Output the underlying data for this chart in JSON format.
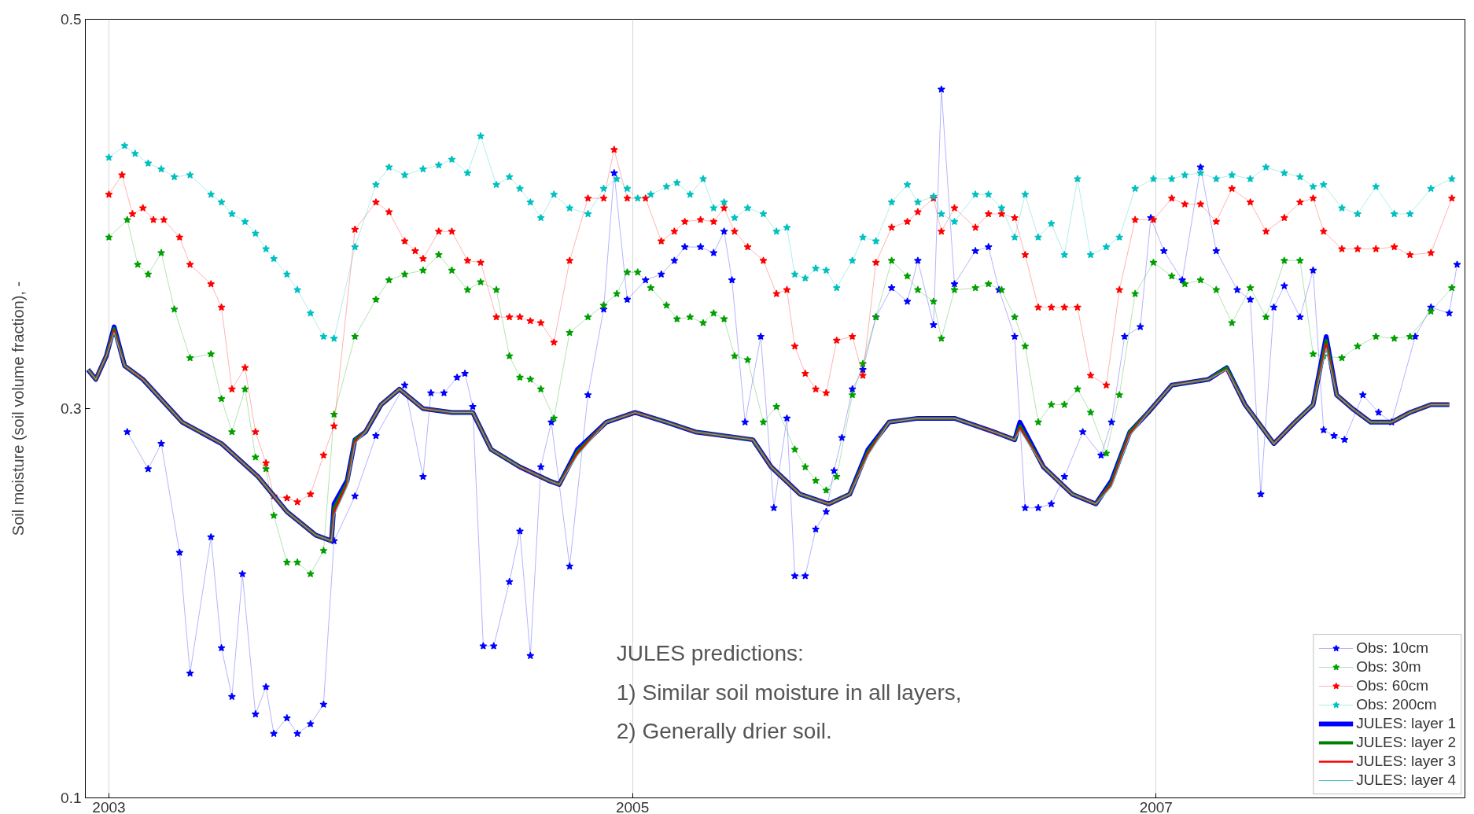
{
  "chart_data": {
    "type": "line",
    "ylabel": "Soil moisture (soil volume fraction), -",
    "xlim": [
      2002.91,
      2008.18
    ],
    "ylim": [
      0.1,
      0.5
    ],
    "xticks": [
      2003,
      2005,
      2007
    ],
    "yticks": [
      0.1,
      0.3,
      0.5
    ],
    "grid": "x",
    "legend": "bottom right",
    "annotations": [
      "JULES predictions:\n1)  Similar soil moisture in all layers,\n2)  Generally drier soil."
    ],
    "series": [
      {
        "name": "Obs: 10cm",
        "color": "#0000ff",
        "marker": "star",
        "line_style": "solid",
        "x": [
          2003.07,
          2003.15,
          2003.2,
          2003.27,
          2003.31,
          2003.39,
          2003.43,
          2003.47,
          2003.51,
          2003.56,
          2003.6,
          2003.63,
          2003.68,
          2003.72,
          2003.77,
          2003.82,
          2003.86,
          2003.94,
          2004.02,
          2004.13,
          2004.2,
          2004.23,
          2004.28,
          2004.33,
          2004.36,
          2004.39,
          2004.43,
          2004.47,
          2004.53,
          2004.57,
          2004.61,
          2004.65,
          2004.69,
          2004.76,
          2004.83,
          2004.89,
          2004.93,
          2004.98,
          2005.05,
          2005.11,
          2005.16,
          2005.2,
          2005.26,
          2005.31,
          2005.35,
          2005.38,
          2005.43,
          2005.49,
          2005.54,
          2005.59,
          2005.62,
          2005.66,
          2005.7,
          2005.74,
          2005.77,
          2005.8,
          2005.84,
          2005.88,
          2005.93,
          2005.99,
          2006.05,
          2006.09,
          2006.15,
          2006.18,
          2006.23,
          2006.31,
          2006.36,
          2006.4,
          2006.46,
          2006.5,
          2006.55,
          2006.6,
          2006.65,
          2006.72,
          2006.79,
          2006.83,
          2006.88,
          2006.94,
          2006.98,
          2007.03,
          2007.1,
          2007.17,
          2007.23,
          2007.31,
          2007.36,
          2007.4,
          2007.45,
          2007.49,
          2007.55,
          2007.6,
          2007.64,
          2007.68,
          2007.72,
          2007.79,
          2007.85,
          2007.9,
          2007.99,
          2008.05,
          2008.12,
          2008.15
        ],
        "values": [
          0.288,
          0.269,
          0.282,
          0.226,
          0.164,
          0.234,
          0.177,
          0.152,
          0.215,
          0.143,
          0.157,
          0.133,
          0.141,
          0.133,
          0.138,
          0.148,
          0.232,
          0.255,
          0.286,
          0.312,
          0.265,
          0.308,
          0.308,
          0.316,
          0.318,
          0.301,
          0.178,
          0.178,
          0.211,
          0.237,
          0.173,
          0.27,
          0.293,
          0.219,
          0.307,
          0.351,
          0.421,
          0.356,
          0.366,
          0.369,
          0.376,
          0.383,
          0.383,
          0.38,
          0.391,
          0.366,
          0.293,
          0.337,
          0.249,
          0.295,
          0.214,
          0.214,
          0.238,
          0.247,
          0.268,
          0.285,
          0.31,
          0.32,
          0.347,
          0.362,
          0.355,
          0.376,
          0.343,
          0.464,
          0.364,
          0.381,
          0.383,
          0.361,
          0.337,
          0.249,
          0.249,
          0.251,
          0.265,
          0.288,
          0.276,
          0.293,
          0.337,
          0.342,
          0.398,
          0.381,
          0.366,
          0.424,
          0.381,
          0.361,
          0.356,
          0.256,
          0.352,
          0.363,
          0.347,
          0.371,
          0.289,
          0.286,
          0.284,
          0.307,
          0.298,
          0.293,
          0.337,
          0.352,
          0.349,
          0.374
        ]
      },
      {
        "name": "Obs: 30m",
        "color": "#00a000",
        "marker": "star",
        "line_style": "solid",
        "x": [
          2003.0,
          2003.07,
          2003.11,
          2003.15,
          2003.2,
          2003.25,
          2003.31,
          2003.39,
          2003.43,
          2003.47,
          2003.52,
          2003.56,
          2003.6,
          2003.63,
          2003.68,
          2003.72,
          2003.77,
          2003.82,
          2003.86,
          2003.94,
          2004.02,
          2004.07,
          2004.13,
          2004.2,
          2004.26,
          2004.31,
          2004.37,
          2004.42,
          2004.48,
          2004.53,
          2004.57,
          2004.61,
          2004.65,
          2004.7,
          2004.76,
          2004.83,
          2004.89,
          2004.94,
          2004.98,
          2005.02,
          2005.07,
          2005.13,
          2005.17,
          2005.22,
          2005.27,
          2005.31,
          2005.35,
          2005.39,
          2005.44,
          2005.5,
          2005.55,
          2005.62,
          2005.66,
          2005.7,
          2005.74,
          2005.78,
          2005.84,
          2005.88,
          2005.93,
          2005.99,
          2006.05,
          2006.09,
          2006.15,
          2006.18,
          2006.23,
          2006.31,
          2006.36,
          2006.41,
          2006.46,
          2006.5,
          2006.55,
          2006.6,
          2006.65,
          2006.7,
          2006.75,
          2006.81,
          2006.86,
          2006.92,
          2006.99,
          2007.06,
          2007.11,
          2007.17,
          2007.23,
          2007.29,
          2007.36,
          2007.42,
          2007.49,
          2007.55,
          2007.6,
          2007.64,
          2007.71,
          2007.77,
          2007.84,
          2007.91,
          2007.97,
          2008.05,
          2008.13
        ],
        "values": [
          0.388,
          0.397,
          0.374,
          0.369,
          0.38,
          0.351,
          0.326,
          0.328,
          0.305,
          0.288,
          0.31,
          0.275,
          0.269,
          0.245,
          0.221,
          0.221,
          0.215,
          0.227,
          0.297,
          0.337,
          0.356,
          0.366,
          0.369,
          0.371,
          0.379,
          0.371,
          0.361,
          0.365,
          0.361,
          0.327,
          0.316,
          0.315,
          0.31,
          0.295,
          0.339,
          0.347,
          0.353,
          0.359,
          0.37,
          0.37,
          0.362,
          0.353,
          0.346,
          0.347,
          0.344,
          0.349,
          0.346,
          0.327,
          0.325,
          0.293,
          0.301,
          0.279,
          0.27,
          0.263,
          0.258,
          0.265,
          0.307,
          0.323,
          0.347,
          0.376,
          0.368,
          0.361,
          0.355,
          0.336,
          0.361,
          0.362,
          0.364,
          0.361,
          0.347,
          0.332,
          0.293,
          0.302,
          0.302,
          0.31,
          0.298,
          0.277,
          0.307,
          0.359,
          0.375,
          0.368,
          0.364,
          0.366,
          0.361,
          0.344,
          0.362,
          0.347,
          0.376,
          0.376,
          0.328,
          0.327,
          0.326,
          0.332,
          0.337,
          0.336,
          0.337,
          0.35,
          0.362
        ]
      },
      {
        "name": "Obs: 60cm",
        "color": "#ff0000",
        "marker": "star",
        "line_style": "solid",
        "x": [
          2003.0,
          2003.05,
          2003.09,
          2003.13,
          2003.17,
          2003.21,
          2003.27,
          2003.31,
          2003.39,
          2003.43,
          2003.47,
          2003.52,
          2003.56,
          2003.6,
          2003.63,
          2003.68,
          2003.72,
          2003.77,
          2003.82,
          2003.86,
          2003.94,
          2004.02,
          2004.07,
          2004.13,
          2004.17,
          2004.2,
          2004.26,
          2004.31,
          2004.37,
          2004.42,
          2004.48,
          2004.53,
          2004.57,
          2004.61,
          2004.65,
          2004.7,
          2004.76,
          2004.83,
          2004.89,
          2004.93,
          2004.98,
          2005.05,
          2005.11,
          2005.16,
          2005.2,
          2005.26,
          2005.31,
          2005.35,
          2005.39,
          2005.44,
          2005.5,
          2005.55,
          2005.59,
          2005.62,
          2005.66,
          2005.7,
          2005.74,
          2005.78,
          2005.84,
          2005.88,
          2005.93,
          2005.99,
          2006.05,
          2006.09,
          2006.15,
          2006.18,
          2006.23,
          2006.31,
          2006.36,
          2006.41,
          2006.46,
          2006.5,
          2006.55,
          2006.6,
          2006.65,
          2006.7,
          2006.75,
          2006.81,
          2006.86,
          2006.92,
          2006.99,
          2007.06,
          2007.11,
          2007.17,
          2007.23,
          2007.29,
          2007.36,
          2007.42,
          2007.49,
          2007.55,
          2007.6,
          2007.64,
          2007.71,
          2007.77,
          2007.84,
          2007.91,
          2007.97,
          2008.05,
          2008.13
        ],
        "values": [
          0.41,
          0.42,
          0.4,
          0.403,
          0.397,
          0.397,
          0.388,
          0.374,
          0.364,
          0.352,
          0.31,
          0.321,
          0.288,
          0.272,
          0.255,
          0.254,
          0.252,
          0.256,
          0.276,
          0.291,
          0.392,
          0.406,
          0.401,
          0.386,
          0.381,
          0.377,
          0.391,
          0.391,
          0.376,
          0.375,
          0.347,
          0.347,
          0.347,
          0.345,
          0.344,
          0.334,
          0.376,
          0.408,
          0.408,
          0.433,
          0.408,
          0.408,
          0.386,
          0.391,
          0.396,
          0.397,
          0.396,
          0.403,
          0.391,
          0.383,
          0.376,
          0.359,
          0.361,
          0.332,
          0.318,
          0.31,
          0.308,
          0.335,
          0.337,
          0.317,
          0.375,
          0.393,
          0.396,
          0.401,
          0.408,
          0.391,
          0.403,
          0.393,
          0.4,
          0.4,
          0.398,
          0.379,
          0.352,
          0.352,
          0.352,
          0.352,
          0.317,
          0.312,
          0.361,
          0.397,
          0.397,
          0.408,
          0.405,
          0.405,
          0.396,
          0.413,
          0.406,
          0.391,
          0.398,
          0.406,
          0.408,
          0.391,
          0.382,
          0.382,
          0.382,
          0.383,
          0.379,
          0.38,
          0.408
        ]
      },
      {
        "name": "Obs: 200cm",
        "color": "#00c0c0",
        "marker": "star",
        "line_style": "solid",
        "x": [
          2003.0,
          2003.06,
          2003.1,
          2003.15,
          2003.2,
          2003.25,
          2003.31,
          2003.39,
          2003.43,
          2003.47,
          2003.52,
          2003.56,
          2003.6,
          2003.63,
          2003.68,
          2003.72,
          2003.77,
          2003.82,
          2003.86,
          2003.94,
          2004.02,
          2004.07,
          2004.13,
          2004.2,
          2004.26,
          2004.31,
          2004.37,
          2004.42,
          2004.48,
          2004.53,
          2004.57,
          2004.61,
          2004.65,
          2004.7,
          2004.76,
          2004.83,
          2004.89,
          2004.94,
          2004.98,
          2005.02,
          2005.07,
          2005.13,
          2005.17,
          2005.22,
          2005.27,
          2005.31,
          2005.35,
          2005.39,
          2005.44,
          2005.5,
          2005.55,
          2005.59,
          2005.62,
          2005.66,
          2005.7,
          2005.74,
          2005.78,
          2005.84,
          2005.88,
          2005.93,
          2005.99,
          2006.05,
          2006.09,
          2006.15,
          2006.18,
          2006.23,
          2006.31,
          2006.36,
          2006.41,
          2006.46,
          2006.5,
          2006.55,
          2006.6,
          2006.65,
          2006.7,
          2006.75,
          2006.81,
          2006.86,
          2006.92,
          2006.99,
          2007.06,
          2007.11,
          2007.17,
          2007.23,
          2007.29,
          2007.36,
          2007.42,
          2007.49,
          2007.55,
          2007.6,
          2007.64,
          2007.71,
          2007.77,
          2007.84,
          2007.91,
          2007.97,
          2008.05,
          2008.13
        ],
        "values": [
          0.429,
          0.435,
          0.431,
          0.426,
          0.423,
          0.419,
          0.42,
          0.41,
          0.406,
          0.4,
          0.396,
          0.39,
          0.382,
          0.377,
          0.369,
          0.361,
          0.349,
          0.337,
          0.336,
          0.383,
          0.415,
          0.424,
          0.42,
          0.423,
          0.425,
          0.428,
          0.421,
          0.44,
          0.415,
          0.419,
          0.413,
          0.406,
          0.398,
          0.41,
          0.403,
          0.4,
          0.413,
          0.418,
          0.413,
          0.408,
          0.41,
          0.414,
          0.416,
          0.41,
          0.418,
          0.403,
          0.406,
          0.398,
          0.403,
          0.4,
          0.391,
          0.393,
          0.369,
          0.367,
          0.372,
          0.371,
          0.362,
          0.376,
          0.388,
          0.386,
          0.406,
          0.415,
          0.406,
          0.409,
          0.4,
          0.396,
          0.41,
          0.41,
          0.403,
          0.388,
          0.41,
          0.388,
          0.395,
          0.379,
          0.418,
          0.379,
          0.383,
          0.388,
          0.413,
          0.418,
          0.418,
          0.42,
          0.421,
          0.418,
          0.42,
          0.418,
          0.424,
          0.421,
          0.419,
          0.414,
          0.415,
          0.403,
          0.4,
          0.414,
          0.4,
          0.4,
          0.413,
          0.418
        ]
      },
      {
        "name": "JULES: layer 1",
        "color": "#0000ff",
        "marker": "none",
        "line_style": "solid",
        "x": [
          2002.92,
          2002.95,
          2002.99,
          2003.02,
          2003.06,
          2003.13,
          2003.28,
          2003.43,
          2003.57,
          2003.68,
          2003.79,
          2003.85,
          2003.86,
          2003.91,
          2003.94,
          2003.98,
          2004.04,
          2004.11,
          2004.2,
          2004.31,
          2004.39,
          2004.46,
          2004.57,
          2004.68,
          2004.72,
          2004.79,
          2004.9,
          2005.01,
          2005.13,
          2005.24,
          2005.35,
          2005.46,
          2005.53,
          2005.64,
          2005.75,
          2005.83,
          2005.9,
          2005.98,
          2006.09,
          2006.23,
          2006.38,
          2006.46,
          2006.48,
          2006.57,
          2006.68,
          2006.77,
          2006.83,
          2006.9,
          2006.97,
          2007.06,
          2007.2,
          2007.27,
          2007.34,
          2007.45,
          2007.53,
          2007.6,
          2007.65,
          2007.69,
          2007.75,
          2007.82,
          2007.9,
          2007.97,
          2008.05,
          2008.12
        ],
        "values": [
          0.32,
          0.315,
          0.327,
          0.342,
          0.322,
          0.315,
          0.293,
          0.282,
          0.265,
          0.247,
          0.235,
          0.232,
          0.251,
          0.263,
          0.284,
          0.288,
          0.302,
          0.31,
          0.3,
          0.298,
          0.298,
          0.279,
          0.27,
          0.263,
          0.261,
          0.279,
          0.293,
          0.298,
          0.293,
          0.288,
          0.286,
          0.284,
          0.27,
          0.256,
          0.251,
          0.256,
          0.279,
          0.293,
          0.295,
          0.295,
          0.288,
          0.284,
          0.293,
          0.27,
          0.256,
          0.251,
          0.263,
          0.288,
          0.298,
          0.312,
          0.315,
          0.321,
          0.302,
          0.282,
          0.293,
          0.302,
          0.337,
          0.307,
          0.3,
          0.293,
          0.293,
          0.298,
          0.302,
          0.302
        ]
      },
      {
        "name": "JULES: layer 2",
        "color": "#008000",
        "marker": "none",
        "line_style": "solid",
        "x": [
          2002.92,
          2002.95,
          2002.99,
          2003.02,
          2003.06,
          2003.13,
          2003.28,
          2003.43,
          2003.57,
          2003.68,
          2003.79,
          2003.85,
          2003.86,
          2003.91,
          2003.94,
          2003.98,
          2004.04,
          2004.11,
          2004.2,
          2004.31,
          2004.39,
          2004.46,
          2004.57,
          2004.68,
          2004.72,
          2004.79,
          2004.9,
          2005.01,
          2005.13,
          2005.24,
          2005.35,
          2005.46,
          2005.53,
          2005.64,
          2005.75,
          2005.83,
          2005.9,
          2005.98,
          2006.09,
          2006.23,
          2006.38,
          2006.46,
          2006.48,
          2006.57,
          2006.68,
          2006.77,
          2006.83,
          2006.9,
          2006.97,
          2007.06,
          2007.2,
          2007.27,
          2007.34,
          2007.45,
          2007.53,
          2007.6,
          2007.65,
          2007.69,
          2007.75,
          2007.82,
          2007.9,
          2007.97,
          2008.05,
          2008.12
        ],
        "values": [
          0.32,
          0.315,
          0.327,
          0.341,
          0.322,
          0.315,
          0.293,
          0.282,
          0.265,
          0.247,
          0.235,
          0.232,
          0.249,
          0.262,
          0.284,
          0.288,
          0.302,
          0.31,
          0.3,
          0.298,
          0.298,
          0.279,
          0.27,
          0.263,
          0.261,
          0.278,
          0.293,
          0.298,
          0.293,
          0.288,
          0.286,
          0.284,
          0.27,
          0.256,
          0.251,
          0.256,
          0.278,
          0.293,
          0.295,
          0.295,
          0.288,
          0.284,
          0.291,
          0.27,
          0.256,
          0.251,
          0.262,
          0.288,
          0.298,
          0.312,
          0.315,
          0.321,
          0.302,
          0.282,
          0.293,
          0.302,
          0.335,
          0.307,
          0.3,
          0.293,
          0.293,
          0.298,
          0.302,
          0.302
        ]
      },
      {
        "name": "JULES: layer 3",
        "color": "#ff0000",
        "marker": "none",
        "line_style": "solid",
        "x": [
          2002.92,
          2002.95,
          2002.99,
          2003.02,
          2003.06,
          2003.13,
          2003.28,
          2003.43,
          2003.57,
          2003.68,
          2003.79,
          2003.85,
          2003.86,
          2003.91,
          2003.94,
          2003.98,
          2004.04,
          2004.11,
          2004.2,
          2004.31,
          2004.39,
          2004.46,
          2004.57,
          2004.68,
          2004.72,
          2004.79,
          2004.9,
          2005.01,
          2005.13,
          2005.24,
          2005.35,
          2005.46,
          2005.53,
          2005.64,
          2005.75,
          2005.83,
          2005.9,
          2005.98,
          2006.09,
          2006.23,
          2006.38,
          2006.46,
          2006.48,
          2006.57,
          2006.68,
          2006.77,
          2006.83,
          2006.9,
          2006.97,
          2007.06,
          2007.2,
          2007.27,
          2007.34,
          2007.45,
          2007.53,
          2007.6,
          2007.65,
          2007.69,
          2007.75,
          2007.82,
          2007.9,
          2007.97,
          2008.05,
          2008.12
        ],
        "values": [
          0.32,
          0.315,
          0.327,
          0.34,
          0.322,
          0.315,
          0.293,
          0.282,
          0.265,
          0.247,
          0.235,
          0.232,
          0.247,
          0.261,
          0.283,
          0.288,
          0.302,
          0.31,
          0.3,
          0.298,
          0.298,
          0.279,
          0.27,
          0.263,
          0.261,
          0.277,
          0.293,
          0.298,
          0.293,
          0.288,
          0.286,
          0.284,
          0.27,
          0.256,
          0.251,
          0.256,
          0.277,
          0.293,
          0.295,
          0.295,
          0.288,
          0.284,
          0.29,
          0.27,
          0.256,
          0.251,
          0.261,
          0.287,
          0.298,
          0.312,
          0.315,
          0.32,
          0.302,
          0.282,
          0.293,
          0.302,
          0.333,
          0.307,
          0.3,
          0.293,
          0.293,
          0.298,
          0.302,
          0.302
        ]
      },
      {
        "name": "JULES: layer 4",
        "color": "#40c0c0",
        "marker": "none",
        "line_style": "solid",
        "x": [
          2002.92,
          2002.95,
          2002.99,
          2003.02,
          2003.06,
          2003.13,
          2003.28,
          2003.43,
          2003.57,
          2003.68,
          2003.79,
          2003.85,
          2003.86,
          2003.91,
          2003.94,
          2003.98,
          2004.04,
          2004.11,
          2004.2,
          2004.31,
          2004.39,
          2004.46,
          2004.57,
          2004.68,
          2004.72,
          2004.79,
          2004.9,
          2005.01,
          2005.13,
          2005.24,
          2005.35,
          2005.46,
          2005.53,
          2005.64,
          2005.75,
          2005.83,
          2005.9,
          2005.98,
          2006.09,
          2006.23,
          2006.38,
          2006.46,
          2006.48,
          2006.57,
          2006.68,
          2006.77,
          2006.83,
          2006.9,
          2006.97,
          2007.06,
          2007.2,
          2007.27,
          2007.34,
          2007.45,
          2007.53,
          2007.6,
          2007.65,
          2007.69,
          2007.75,
          2007.82,
          2007.9,
          2007.97,
          2008.05,
          2008.12
        ],
        "values": [
          0.32,
          0.315,
          0.327,
          0.339,
          0.322,
          0.315,
          0.293,
          0.282,
          0.265,
          0.247,
          0.235,
          0.232,
          0.245,
          0.26,
          0.282,
          0.288,
          0.302,
          0.31,
          0.3,
          0.298,
          0.298,
          0.279,
          0.27,
          0.263,
          0.261,
          0.276,
          0.293,
          0.298,
          0.293,
          0.288,
          0.286,
          0.284,
          0.27,
          0.256,
          0.251,
          0.256,
          0.276,
          0.293,
          0.295,
          0.295,
          0.288,
          0.284,
          0.289,
          0.27,
          0.256,
          0.251,
          0.26,
          0.286,
          0.298,
          0.312,
          0.315,
          0.32,
          0.302,
          0.282,
          0.293,
          0.302,
          0.331,
          0.307,
          0.3,
          0.293,
          0.293,
          0.298,
          0.302,
          0.302
        ]
      }
    ]
  }
}
